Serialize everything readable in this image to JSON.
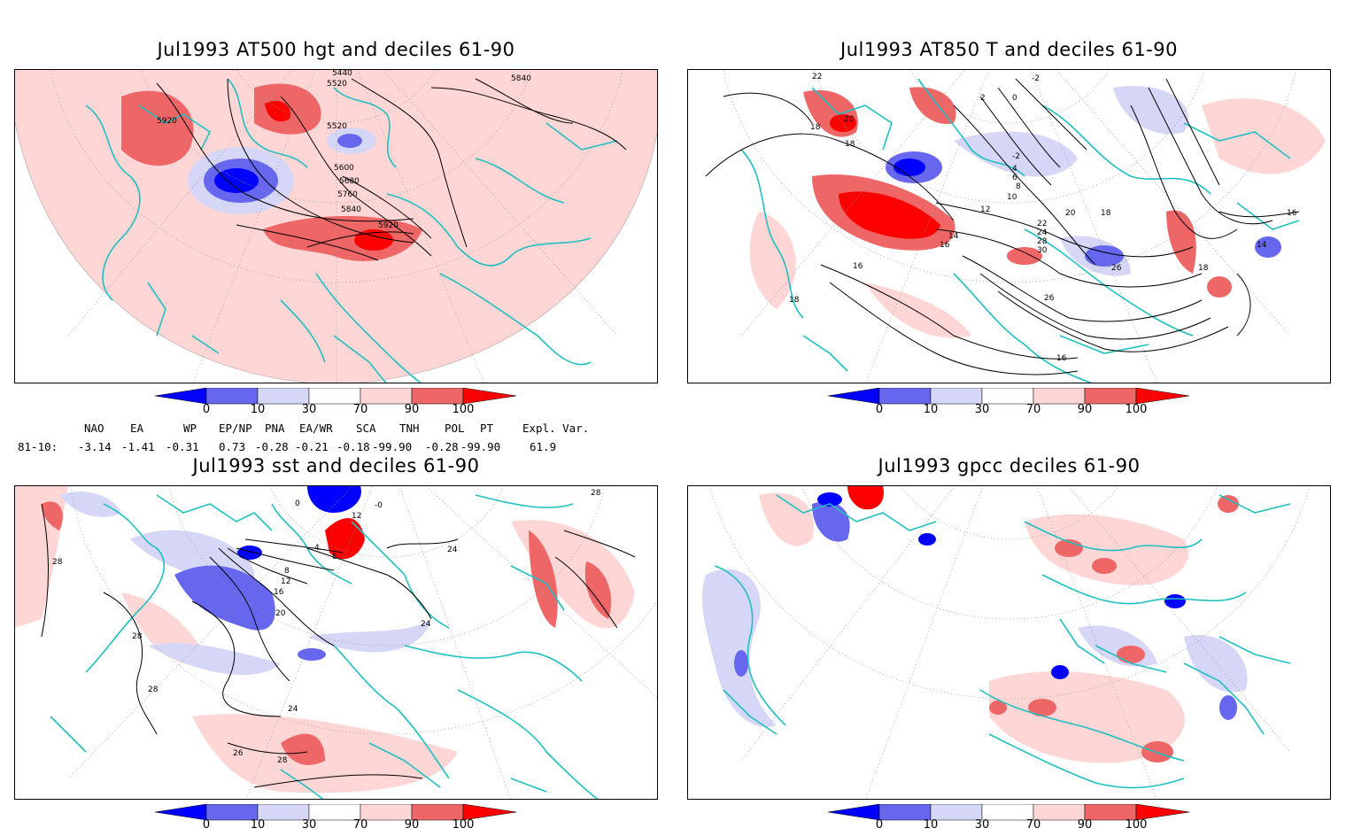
{
  "panels": [
    {
      "title": "Jul1993 AT500 hgt and deciles 61-90",
      "contour_labels": [
        "5440",
        "5520",
        "5840",
        "5920",
        "5520",
        "5600",
        "5680",
        "5760",
        "5840",
        "5920"
      ]
    },
    {
      "title": "Jul1993 AT850 T and deciles 61-90",
      "contour_labels": [
        "22",
        "20",
        "18",
        "18",
        "-2",
        "0",
        "-2",
        "2",
        "4",
        "6",
        "8",
        "10",
        "12",
        "14",
        "16",
        "16",
        "18",
        "20",
        "22",
        "24",
        "26",
        "28",
        "30",
        "26",
        "14",
        "16",
        "18",
        "18",
        "16"
      ]
    },
    {
      "title": "Jul1993 sst and deciles 61-90",
      "contour_labels": [
        "28",
        "28",
        "28",
        "28",
        "28",
        "26",
        "24",
        "24",
        "24",
        "20",
        "16",
        "12",
        "8",
        "4",
        "0",
        "-0",
        "12",
        "8"
      ]
    },
    {
      "title": "Jul1993 gpcc deciles 61-90",
      "contour_labels": []
    }
  ],
  "colorbar": {
    "ticks": [
      "0",
      "10",
      "30",
      "70",
      "90",
      "100"
    ],
    "colors": [
      "#0000ff",
      "#6666ee",
      "#d6d6f7",
      "#ffffff",
      "#ffd6d6",
      "#ee6666",
      "#ff0000"
    ]
  },
  "indices": {
    "headers": [
      "NAO",
      "EA",
      "WP",
      "EP/NP",
      "PNA",
      "EA/WR",
      "SCA",
      "TNH",
      "POL",
      "PT",
      "Expl. Var."
    ],
    "row_label": "81-10:",
    "values": [
      "-3.14",
      "-1.41",
      "-0.31",
      "0.73",
      "-0.28",
      "-0.21",
      "-0.18",
      "-99.90",
      "-0.28",
      "-99.90",
      "61.9"
    ]
  },
  "colors": {
    "coast": "#20c0c0",
    "contour": "#000000",
    "grid": "#9a9a9a"
  }
}
